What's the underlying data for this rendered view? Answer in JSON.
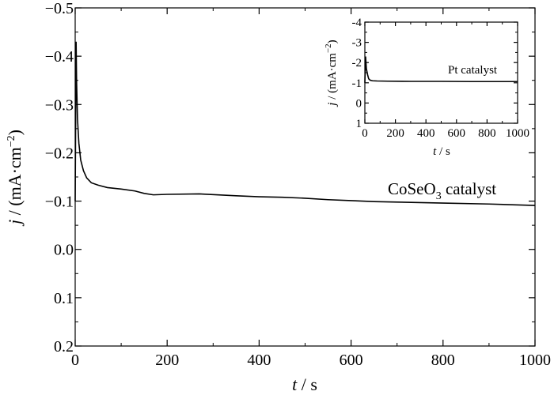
{
  "chart_data": [
    {
      "type": "line",
      "xlabel_var": "t",
      "xlabel_unit": " / s",
      "ylabel_var": "j",
      "ylabel_unit": " / (mA·cm",
      "ylabel_exp": "−2",
      "ylabel_close": ")",
      "xlim": [
        0,
        1000
      ],
      "ylim": [
        0.2,
        -0.5
      ],
      "x_ticks": [
        0,
        200,
        400,
        600,
        800,
        1000
      ],
      "x_tick_labels": [
        "0",
        "200",
        "400",
        "600",
        "800",
        "1000"
      ],
      "y_ticks": [
        -0.5,
        -0.4,
        -0.3,
        -0.2,
        -0.1,
        0.0,
        0.1,
        0.2
      ],
      "y_tick_labels": [
        "−0.5",
        "−0.4",
        "−0.3",
        "−0.2",
        "−0.1",
        "0.0",
        "0.1",
        "0.2"
      ],
      "grid": false,
      "annotation": {
        "prefix": "CoSeO",
        "sub": "3",
        "suffix": " catalyst"
      },
      "series": [
        {
          "x": [
            0,
            2,
            3,
            5,
            8,
            12,
            18,
            25,
            35,
            50,
            70,
            100,
            130,
            150,
            170,
            200,
            270,
            350,
            400,
            450,
            500,
            550,
            600,
            650,
            700,
            800,
            900,
            1000
          ],
          "y": [
            -0.1,
            -0.43,
            -0.35,
            -0.27,
            -0.22,
            -0.185,
            -0.163,
            -0.148,
            -0.138,
            -0.133,
            -0.128,
            -0.125,
            -0.121,
            -0.116,
            -0.113,
            -0.114,
            -0.115,
            -0.111,
            -0.109,
            -0.108,
            -0.106,
            -0.103,
            -0.101,
            -0.099,
            -0.098,
            -0.096,
            -0.094,
            -0.091
          ]
        }
      ]
    },
    {
      "type": "line",
      "xlabel_var": "t",
      "xlabel_unit": " / s",
      "ylabel_var": "j",
      "ylabel_unit": " / (mA·cm",
      "ylabel_exp": "−2",
      "ylabel_close": ")",
      "xlim": [
        0,
        1000
      ],
      "ylim": [
        1,
        -4
      ],
      "x_ticks": [
        0,
        200,
        400,
        600,
        800,
        1000
      ],
      "x_tick_labels": [
        "0",
        "200",
        "400",
        "600",
        "800",
        "1000"
      ],
      "y_ticks": [
        -4,
        -3,
        -2,
        -1,
        0,
        1
      ],
      "y_tick_labels": [
        "-4",
        "-3",
        "-2",
        "-1",
        "0",
        "1"
      ],
      "grid": false,
      "annotation": {
        "text": "Pt catalyst"
      },
      "series": [
        {
          "x": [
            0,
            5,
            10,
            18,
            25,
            35,
            50,
            80,
            150,
            300,
            500,
            700,
            1000
          ],
          "y": [
            -1.0,
            -2.3,
            -1.7,
            -1.4,
            -1.2,
            -1.13,
            -1.1,
            -1.09,
            -1.08,
            -1.07,
            -1.07,
            -1.06,
            -1.06
          ]
        }
      ]
    }
  ]
}
